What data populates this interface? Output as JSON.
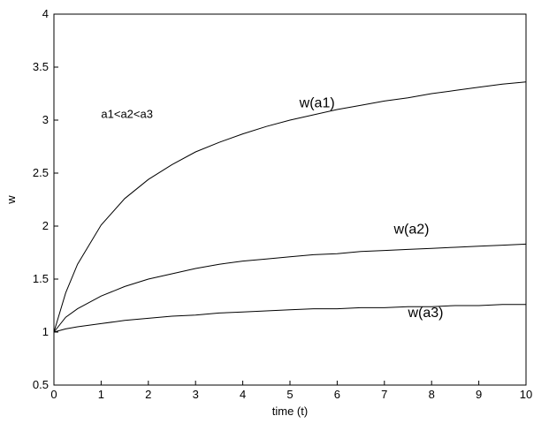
{
  "chart_data": {
    "type": "line",
    "title": "",
    "xlabel": "time (t)",
    "ylabel": "w",
    "xlim": [
      0,
      10
    ],
    "ylim": [
      0.5,
      4
    ],
    "xticks": [
      0,
      1,
      2,
      3,
      4,
      5,
      6,
      7,
      8,
      9,
      10
    ],
    "xtick_labels": [
      "0",
      "1",
      "2",
      "3",
      "4",
      "5",
      "6",
      "7",
      "8",
      "9",
      "10"
    ],
    "yticks": [
      0.5,
      1,
      1.5,
      2,
      2.5,
      3,
      3.5,
      4
    ],
    "ytick_labels": [
      "0.5",
      "1",
      "1.5",
      "2",
      "2.5",
      "3",
      "3.5",
      "4"
    ],
    "grid": false,
    "annotation": "a1<a2<a3",
    "series": [
      {
        "name": "w(a1)",
        "x": [
          0,
          0.25,
          0.5,
          1,
          1.5,
          2,
          2.5,
          3,
          3.5,
          4,
          4.5,
          5,
          5.5,
          6,
          6.5,
          7,
          7.5,
          8,
          8.5,
          9,
          9.5,
          10
        ],
        "y": [
          1.0,
          1.37,
          1.64,
          2.01,
          2.26,
          2.44,
          2.58,
          2.7,
          2.79,
          2.87,
          2.94,
          3.0,
          3.05,
          3.1,
          3.14,
          3.18,
          3.21,
          3.25,
          3.28,
          3.31,
          3.34,
          3.36
        ]
      },
      {
        "name": "w(a2)",
        "x": [
          0,
          0.25,
          0.5,
          1,
          1.5,
          2,
          2.5,
          3,
          3.5,
          4,
          4.5,
          5,
          5.5,
          6,
          6.5,
          7,
          7.5,
          8,
          8.5,
          9,
          9.5,
          10
        ],
        "y": [
          1.0,
          1.14,
          1.22,
          1.34,
          1.43,
          1.5,
          1.55,
          1.6,
          1.64,
          1.67,
          1.69,
          1.71,
          1.73,
          1.74,
          1.76,
          1.77,
          1.78,
          1.79,
          1.8,
          1.81,
          1.82,
          1.83
        ]
      },
      {
        "name": "w(a3)",
        "x": [
          0,
          0.25,
          0.5,
          1,
          1.5,
          2,
          2.5,
          3,
          3.5,
          4,
          4.5,
          5,
          5.5,
          6,
          6.5,
          7,
          7.5,
          8,
          8.5,
          9,
          9.5,
          10
        ],
        "y": [
          1.0,
          1.03,
          1.05,
          1.08,
          1.11,
          1.13,
          1.15,
          1.16,
          1.18,
          1.19,
          1.2,
          1.21,
          1.22,
          1.22,
          1.23,
          1.23,
          1.24,
          1.24,
          1.25,
          1.25,
          1.26,
          1.26
        ]
      }
    ],
    "series_labels": [
      {
        "text": "w(a1)",
        "x": 5.2,
        "y": 3.12
      },
      {
        "text": "w(a2)",
        "x": 7.2,
        "y": 1.93
      },
      {
        "text": "w(a3)",
        "x": 7.5,
        "y": 1.14
      }
    ],
    "annotation_pos": {
      "x": 1.0,
      "y": 3.02
    }
  }
}
